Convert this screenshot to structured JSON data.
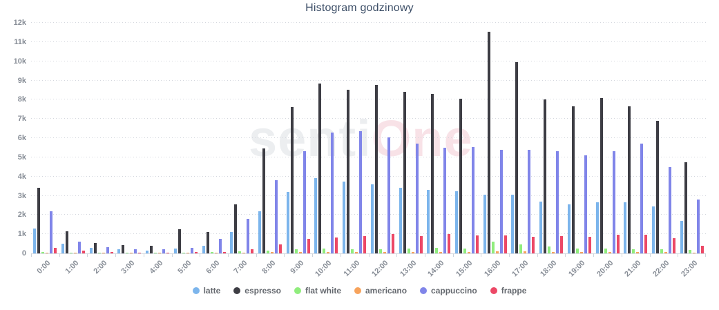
{
  "title": "Histogram godzinowy",
  "watermark": {
    "part1": "senti",
    "part2": "One"
  },
  "chart_data": {
    "type": "bar",
    "title": "Histogram godzinowy",
    "xlabel": "",
    "ylabel": "",
    "ylim": [
      0,
      12000
    ],
    "ytick_step": 1000,
    "ytick_labels": [
      "0",
      "1k",
      "2k",
      "3k",
      "4k",
      "5k",
      "6k",
      "7k",
      "8k",
      "9k",
      "10k",
      "11k",
      "12k"
    ],
    "grid": "dotted-horizontal",
    "legend_position": "bottom",
    "categories": [
      "0:00",
      "1:00",
      "2:00",
      "3:00",
      "4:00",
      "5:00",
      "6:00",
      "7:00",
      "8:00",
      "9:00",
      "10:00",
      "11:00",
      "12:00",
      "13:00",
      "14:00",
      "15:00",
      "16:00",
      "17:00",
      "18:00",
      "19:00",
      "20:00",
      "21:00",
      "22:00",
      "23:00"
    ],
    "series": [
      {
        "name": "latte",
        "color": "#7cb5ec",
        "values": [
          1300,
          500,
          300,
          200,
          150,
          250,
          400,
          1100,
          2200,
          3200,
          3900,
          3750,
          3600,
          3400,
          3300,
          3250,
          3050,
          3050,
          2700,
          2550,
          2650,
          2650,
          2450,
          1700
        ]
      },
      {
        "name": "espresso",
        "color": "#3d3d44",
        "values": [
          3400,
          1150,
          550,
          430,
          400,
          1250,
          1100,
          2550,
          5450,
          7600,
          8850,
          8500,
          8750,
          8400,
          8300,
          8050,
          11550,
          9950,
          8000,
          7650,
          8100,
          7650,
          6900,
          4750
        ]
      },
      {
        "name": "flat white",
        "color": "#90ed7d",
        "values": [
          70,
          40,
          30,
          30,
          30,
          40,
          60,
          120,
          150,
          200,
          250,
          230,
          200,
          250,
          300,
          250,
          600,
          450,
          350,
          260,
          240,
          200,
          230,
          170
        ]
      },
      {
        "name": "americano",
        "color": "#f7a35c",
        "values": [
          30,
          20,
          10,
          10,
          10,
          20,
          30,
          50,
          60,
          80,
          80,
          80,
          80,
          80,
          80,
          80,
          100,
          100,
          80,
          70,
          70,
          70,
          60,
          40
        ]
      },
      {
        "name": "cappuccino",
        "color": "#8085e9",
        "values": [
          2200,
          600,
          310,
          220,
          200,
          280,
          750,
          1800,
          3800,
          5300,
          6300,
          6350,
          6050,
          5700,
          5500,
          5550,
          5400,
          5400,
          5300,
          5100,
          5300,
          5700,
          4500,
          2800
        ]
      },
      {
        "name": "frappe",
        "color": "#ec4866",
        "values": [
          280,
          150,
          80,
          50,
          40,
          60,
          80,
          200,
          450,
          750,
          820,
          890,
          1000,
          900,
          1000,
          920,
          950,
          850,
          900,
          880,
          970,
          960,
          800,
          400
        ]
      }
    ]
  }
}
